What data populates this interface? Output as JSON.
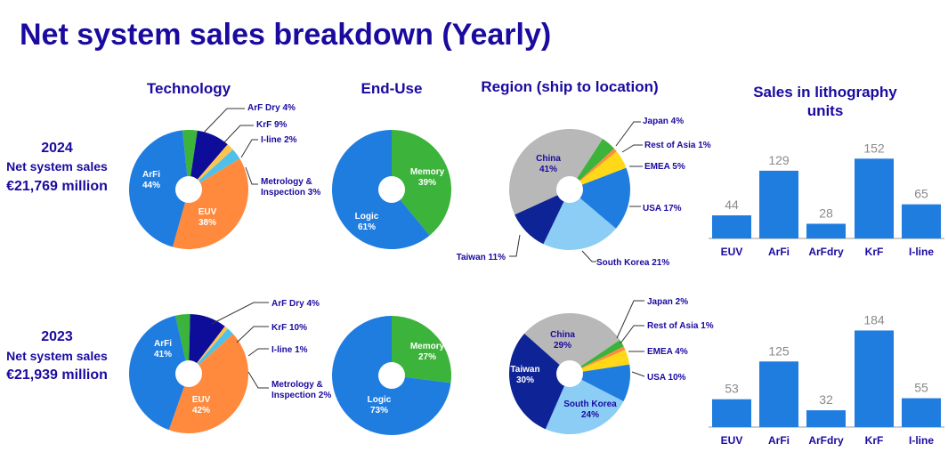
{
  "title": "Net system sales breakdown (Yearly)",
  "headers": {
    "technology": "Technology",
    "end_use": "End-Use",
    "region": "Region (ship to location)",
    "litho1": "Sales in lithography",
    "litho2": "units"
  },
  "years": [
    {
      "year": "2024",
      "label": "Net system sales",
      "amount": "€21,769 million"
    },
    {
      "year": "2023",
      "label": "Net system sales",
      "amount": "€21,939 million"
    }
  ],
  "colors": {
    "ArFi": "#1f7de0",
    "EUV": "#ff8a3d",
    "ArF Dry": "#3cb33a",
    "KrF": "#0d0d99",
    "I-line": "#fcc44e",
    "Metrology": "#4fc0ea",
    "Logic": "#1f7de0",
    "Memory": "#3cb33a",
    "China": "#b8b8b8",
    "Taiwan": "#0e2496",
    "South Korea": "#8bcdf5",
    "USA": "#1f7de0",
    "EMEA": "#ffd917",
    "Rest of Asia": "#ff8c3a",
    "Japan": "#3cb33a",
    "bar": "#1f7de0"
  },
  "chart_data": [
    {
      "type": "pie",
      "title": "Technology 2024",
      "slices": [
        {
          "name": "ArF Dry",
          "value": 4,
          "label": "ArF Dry 4%"
        },
        {
          "name": "KrF",
          "value": 9,
          "label": "KrF 9%"
        },
        {
          "name": "I-line",
          "value": 2,
          "label": "I-line 2%"
        },
        {
          "name": "Metrology",
          "value": 3,
          "label": "Metrology &",
          "label2": "Inspection 3%"
        },
        {
          "name": "EUV",
          "value": 38,
          "label": "EUV",
          "label2": "38%"
        },
        {
          "name": "ArFi",
          "value": 44,
          "label": "ArFi",
          "label2": "44%"
        }
      ]
    },
    {
      "type": "pie",
      "title": "End-Use 2024",
      "slices": [
        {
          "name": "Memory",
          "value": 39,
          "label": "Memory",
          "label2": "39%"
        },
        {
          "name": "Logic",
          "value": 61,
          "label": "Logic",
          "label2": "61%"
        }
      ]
    },
    {
      "type": "pie",
      "title": "Region 2024",
      "slices": [
        {
          "name": "Japan",
          "value": 4,
          "label": "Japan 4%"
        },
        {
          "name": "Rest of Asia",
          "value": 1,
          "label": "Rest of Asia 1%"
        },
        {
          "name": "EMEA",
          "value": 5,
          "label": "EMEA 5%"
        },
        {
          "name": "USA",
          "value": 17,
          "label": "USA 17%"
        },
        {
          "name": "South Korea",
          "value": 21,
          "label": "South Korea 21%"
        },
        {
          "name": "Taiwan",
          "value": 11,
          "label": "Taiwan 11%"
        },
        {
          "name": "China",
          "value": 41,
          "label": "China",
          "label2": "41%"
        }
      ]
    },
    {
      "type": "bar",
      "title": "Sales in lithography units 2024",
      "categories": [
        "EUV",
        "ArFi",
        "ArFdry",
        "KrF",
        "I-line"
      ],
      "values": [
        44,
        129,
        28,
        152,
        65
      ]
    },
    {
      "type": "pie",
      "title": "Technology 2023",
      "slices": [
        {
          "name": "ArF Dry",
          "value": 4,
          "label": "ArF Dry 4%"
        },
        {
          "name": "KrF",
          "value": 10,
          "label": "KrF 10%"
        },
        {
          "name": "I-line",
          "value": 1,
          "label": "I-line 1%"
        },
        {
          "name": "Metrology",
          "value": 2,
          "label": "Metrology &",
          "label2": "Inspection 2%"
        },
        {
          "name": "EUV",
          "value": 42,
          "label": "EUV",
          "label2": "42%"
        },
        {
          "name": "ArFi",
          "value": 41,
          "label": "ArFi",
          "label2": "41%"
        }
      ]
    },
    {
      "type": "pie",
      "title": "End-Use 2023",
      "slices": [
        {
          "name": "Memory",
          "value": 27,
          "label": "Memory",
          "label2": "27%"
        },
        {
          "name": "Logic",
          "value": 73,
          "label": "Logic",
          "label2": "73%"
        }
      ]
    },
    {
      "type": "pie",
      "title": "Region 2023",
      "slices": [
        {
          "name": "Japan",
          "value": 2,
          "label": "Japan 2%"
        },
        {
          "name": "Rest of Asia",
          "value": 1,
          "label": "Rest of Asia 1%"
        },
        {
          "name": "EMEA",
          "value": 4,
          "label": "EMEA 4%"
        },
        {
          "name": "USA",
          "value": 10,
          "label": "USA 10%"
        },
        {
          "name": "South Korea",
          "value": 24,
          "label": "South Korea",
          "label2": "24%"
        },
        {
          "name": "Taiwan",
          "value": 30,
          "label": "Taiwan",
          "label2": "30%"
        },
        {
          "name": "China",
          "value": 29,
          "label": "China",
          "label2": "29%"
        }
      ]
    },
    {
      "type": "bar",
      "title": "Sales in lithography units 2023",
      "categories": [
        "EUV",
        "ArFi",
        "ArFdry",
        "KrF",
        "I-line"
      ],
      "values": [
        53,
        125,
        32,
        184,
        55
      ]
    }
  ]
}
